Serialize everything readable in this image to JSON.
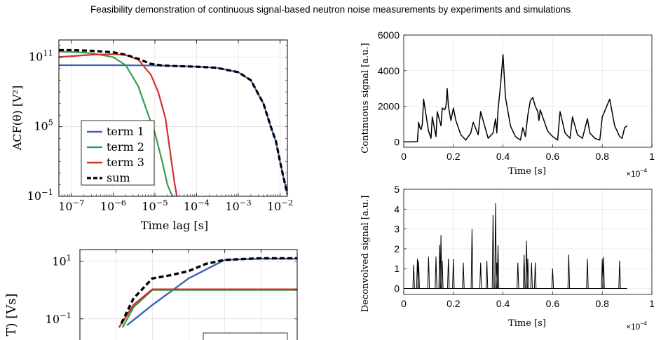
{
  "title": "Feasibility demonstration of continuous signal-based neutron noise measurements by experiments and simulations",
  "colors": {
    "term1": "#3c64b4",
    "term2": "#3a9a4e",
    "term3": "#d03030",
    "sum": "#000000"
  },
  "chart_data": [
    {
      "type": "line",
      "scale": "log-log",
      "xlabel": "Time lag [s]",
      "ylabel": "ACF(θ) [V²]",
      "xticks": [
        "10−7",
        "10−6",
        "10−5",
        "10−4",
        "10−3",
        "10−2"
      ],
      "yticks": [
        "10−1",
        "105",
        "1011"
      ],
      "xlim": [
        5e-08,
        0.015
      ],
      "ylim": [
        0.1,
        3000000000000.0
      ],
      "grid": true,
      "legend_position": "bottom-left",
      "series": [
        {
          "name": "term 1",
          "color": "#3c64b4",
          "style": "solid",
          "x": [
            5e-08,
            1e-07,
            1e-06,
            1e-05,
            3e-05,
            0.0001,
            0.0003,
            0.001,
            0.002,
            0.004,
            0.006,
            0.008,
            0.01,
            0.012,
            0.015
          ],
          "y": [
            20000000000.0,
            20000000000.0,
            20000000000.0,
            19000000000.0,
            17000000000.0,
            15000000000.0,
            12000000000.0,
            5000000000.0,
            1000000000.0,
            10000000.0,
            100000.0,
            5000.0,
            100,
            5,
            0.15
          ]
        },
        {
          "name": "term 2",
          "color": "#3a9a4e",
          "style": "solid",
          "x": [
            5e-08,
            1e-07,
            3e-07,
            1e-06,
            2e-06,
            4e-06,
            7e-06,
            1e-05,
            1.5e-05,
            2e-05,
            2.5e-05,
            3e-05
          ],
          "y": [
            300000000000.0,
            280000000000.0,
            220000000000.0,
            100000000000.0,
            20000000000.0,
            300000000.0,
            1000000.0,
            30000.0,
            100,
            1,
            0.15,
            0.05
          ]
        },
        {
          "name": "term 3",
          "color": "#d03030",
          "style": "solid",
          "x": [
            5e-08,
            1e-07,
            3e-07,
            1e-06,
            2e-06,
            4e-06,
            8e-06,
            1.2e-05,
            1.8e-05,
            2.5e-05,
            3e-05,
            3.5e-05
          ],
          "y": [
            100000000000.0,
            120000000000.0,
            160000000000.0,
            180000000000.0,
            150000000000.0,
            60000000000.0,
            3000000000.0,
            100000000.0,
            500000.0,
            100,
            1,
            0.05
          ]
        },
        {
          "name": "sum",
          "color": "#000000",
          "style": "dashed",
          "x": [
            5e-08,
            1e-07,
            3e-07,
            1e-06,
            2e-06,
            4e-06,
            8e-06,
            1.5e-05,
            3e-05,
            0.0001,
            0.0003,
            0.001,
            0.002,
            0.004,
            0.006,
            0.008,
            0.01,
            0.012,
            0.015
          ],
          "y": [
            400000000000.0,
            400000000000.0,
            350000000000.0,
            260000000000.0,
            160000000000.0,
            70000000000.0,
            26000000000.0,
            19000000000.0,
            17000000000.0,
            15000000000.0,
            12000000000.0,
            5000000000.0,
            1000000000.0,
            10000000.0,
            100000.0,
            5000.0,
            100,
            5,
            0.15
          ]
        }
      ]
    },
    {
      "type": "line",
      "scale": "log-log",
      "ylabel": "T) [Vs]",
      "yticks": [
        "101",
        "10−1"
      ],
      "grid": true,
      "series": [
        {
          "name": "",
          "color": "#3c64b4",
          "style": "solid",
          "x": [
            2e-06,
            1e-05,
            0.0001,
            0.001,
            0.01,
            0.1
          ],
          "y": [
            0.06,
            0.3,
            2.5,
            11,
            12,
            12
          ]
        },
        {
          "name": "",
          "color": "#3a9a4e",
          "style": "solid",
          "x": [
            1.5e-06,
            3e-06,
            1e-05,
            0.0001,
            0.1
          ],
          "y": [
            0.05,
            0.25,
            1.0,
            1.0,
            1.0
          ]
        },
        {
          "name": "",
          "color": "#d03030",
          "style": "solid",
          "x": [
            1.2e-06,
            3e-06,
            1e-05,
            0.0001,
            0.1
          ],
          "y": [
            0.05,
            0.3,
            1.05,
            1.05,
            1.05
          ]
        },
        {
          "name": "",
          "color": "#000000",
          "style": "dashed",
          "x": [
            1.4e-06,
            3e-06,
            1e-05,
            3e-05,
            0.0001,
            0.0003,
            0.001,
            0.01,
            0.1
          ],
          "y": [
            0.07,
            0.5,
            2.5,
            3.2,
            4.5,
            8,
            11,
            12.5,
            12.5
          ]
        }
      ]
    },
    {
      "type": "line",
      "xlabel": "Time [s]",
      "ylabel": "Continuous signal [a.u.]",
      "x_multiplier": "×10−4",
      "xticks": [
        "0",
        "0.2",
        "0.4",
        "0.6",
        "0.8",
        "1"
      ],
      "yticks": [
        "0",
        "2000",
        "4000",
        "6000"
      ],
      "xlim": [
        0,
        1
      ],
      "ylim": [
        -300,
        6000
      ],
      "grid": true,
      "series": [
        {
          "name": "",
          "color": "#000000",
          "x": [
            0,
            0.04,
            0.045,
            0.055,
            0.06,
            0.065,
            0.07,
            0.075,
            0.08,
            0.1,
            0.11,
            0.115,
            0.13,
            0.135,
            0.15,
            0.155,
            0.165,
            0.17,
            0.175,
            0.18,
            0.19,
            0.2,
            0.21,
            0.23,
            0.25,
            0.27,
            0.28,
            0.3,
            0.31,
            0.33,
            0.34,
            0.36,
            0.37,
            0.375,
            0.38,
            0.39,
            0.4,
            0.41,
            0.43,
            0.45,
            0.47,
            0.48,
            0.49,
            0.5,
            0.51,
            0.52,
            0.53,
            0.54,
            0.545,
            0.55,
            0.56,
            0.58,
            0.6,
            0.62,
            0.63,
            0.65,
            0.67,
            0.68,
            0.7,
            0.72,
            0.74,
            0.75,
            0.77,
            0.79,
            0.8,
            0.83,
            0.85,
            0.87,
            0.88,
            0.89,
            0.9
          ],
          "y": [
            0,
            0,
            10,
            20,
            1100,
            800,
            700,
            1000,
            2400,
            600,
            200,
            1400,
            300,
            1700,
            900,
            1900,
            1800,
            2000,
            3000,
            2000,
            1200,
            1900,
            1200,
            400,
            100,
            500,
            1100,
            400,
            1700,
            700,
            200,
            500,
            1300,
            500,
            1800,
            3200,
            4900,
            2500,
            900,
            300,
            100,
            800,
            300,
            1500,
            2300,
            2500,
            2000,
            1700,
            1200,
            1800,
            1400,
            600,
            300,
            100,
            1700,
            500,
            200,
            1400,
            400,
            200,
            1300,
            500,
            200,
            100,
            1400,
            2400,
            900,
            300,
            200,
            800,
            900
          ]
        }
      ]
    },
    {
      "type": "line",
      "xlabel": "Time [s]",
      "ylabel": "Deconvolved signal [a.u.]",
      "x_multiplier": "×10−4",
      "xticks": [
        "0",
        "0.2",
        "0.4",
        "0.6",
        "0.8",
        "1"
      ],
      "yticks": [
        "0",
        "1",
        "2",
        "3",
        "4",
        "5"
      ],
      "xlim": [
        0,
        1
      ],
      "ylim": [
        -0.3,
        5
      ],
      "grid": true,
      "spikes": {
        "x": [
          0.04,
          0.055,
          0.06,
          0.1,
          0.13,
          0.145,
          0.15,
          0.155,
          0.18,
          0.2,
          0.24,
          0.275,
          0.31,
          0.335,
          0.36,
          0.37,
          0.375,
          0.38,
          0.46,
          0.485,
          0.495,
          0.5,
          0.515,
          0.53,
          0.6,
          0.665,
          0.74,
          0.8,
          0.805,
          0.87
        ],
        "y": [
          1.2,
          1.5,
          1.4,
          1.6,
          1.6,
          2.2,
          2.7,
          1.4,
          1.5,
          1.5,
          1.3,
          3.0,
          1.3,
          1.4,
          3.7,
          4.3,
          1.3,
          2.2,
          1.3,
          1.7,
          2.4,
          1.5,
          1.3,
          1.3,
          1.0,
          1.7,
          1.5,
          1.5,
          1.6,
          1.4
        ]
      }
    }
  ]
}
